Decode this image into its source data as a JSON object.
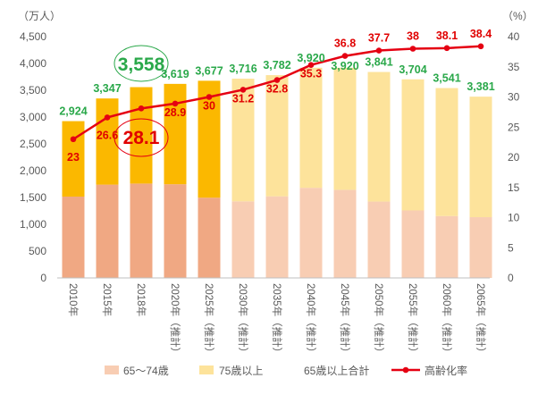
{
  "chart_data": {
    "type": "bar",
    "categories": [
      "2010年",
      "2015年",
      "2018年",
      "2020年（推計）",
      "2025年（推計）",
      "2030年（推計）",
      "2035年（推計）",
      "2040年（推計）",
      "2045年（推計）",
      "2050年（推計）",
      "2055年（推計）",
      "2060年（推計）",
      "2065年（推計）"
    ],
    "left_unit": "（万人）",
    "right_unit": "（%）",
    "ylim": [
      0,
      4500
    ],
    "y2lim": [
      0,
      40
    ],
    "y_ticks": [
      "0",
      "500",
      "1,000",
      "1,500",
      "2,000",
      "2,500",
      "3,000",
      "3,500",
      "4,000",
      "4,500"
    ],
    "y2_ticks": [
      "0",
      "5",
      "10",
      "15",
      "20",
      "25",
      "30",
      "35",
      "40"
    ],
    "projection_start_index": 5,
    "series": [
      {
        "name": "65～74歳",
        "kind": "bar",
        "values": [
          1517,
          1740,
          1760,
          1747,
          1497,
          1428,
          1522,
          1681,
          1643,
          1424,
          1258,
          1154,
          1133
        ]
      },
      {
        "name": "75歳以上",
        "kind": "bar",
        "values": [
          1407,
          1607,
          1798,
          1872,
          2180,
          2288,
          2260,
          2239,
          2277,
          2417,
          2446,
          2387,
          2248
        ]
      },
      {
        "name": "65歳以上合計",
        "kind": "label",
        "values": [
          2924,
          3347,
          3558,
          3619,
          3677,
          3716,
          3782,
          3920,
          3920,
          3841,
          3704,
          3541,
          3381
        ],
        "labels": [
          "2,924",
          "3,347",
          "3,558",
          "3,619",
          "3,677",
          "3,716",
          "3,782",
          "3,920",
          "3,920",
          "3,841",
          "3,704",
          "3,541",
          "3,381"
        ]
      },
      {
        "name": "高齢化率",
        "kind": "line",
        "axis": "right",
        "values": [
          23,
          26.6,
          28.1,
          28.9,
          30,
          31.2,
          32.8,
          35.3,
          36.8,
          37.7,
          38,
          38.1,
          38.4
        ],
        "labels": [
          "23",
          "26.6",
          "28.1",
          "28.9",
          "30",
          "31.2",
          "32.8",
          "35.3",
          "36.8",
          "37.7",
          "38",
          "38.1",
          "38.4"
        ]
      }
    ],
    "highlight": {
      "index": 2,
      "total_label": "3,558",
      "rate_label": "28.1"
    },
    "colors": {
      "young_old": "#f0a883",
      "old_old": "#fbb800",
      "young_old_proj": "#f8cdb3",
      "old_old_proj": "#fde39b",
      "total_label": "#2aa84a",
      "rate_line": "#e50012"
    },
    "legend": [
      "65～74歳",
      "75歳以上",
      "65歳以上合計",
      "高齢化率"
    ]
  }
}
